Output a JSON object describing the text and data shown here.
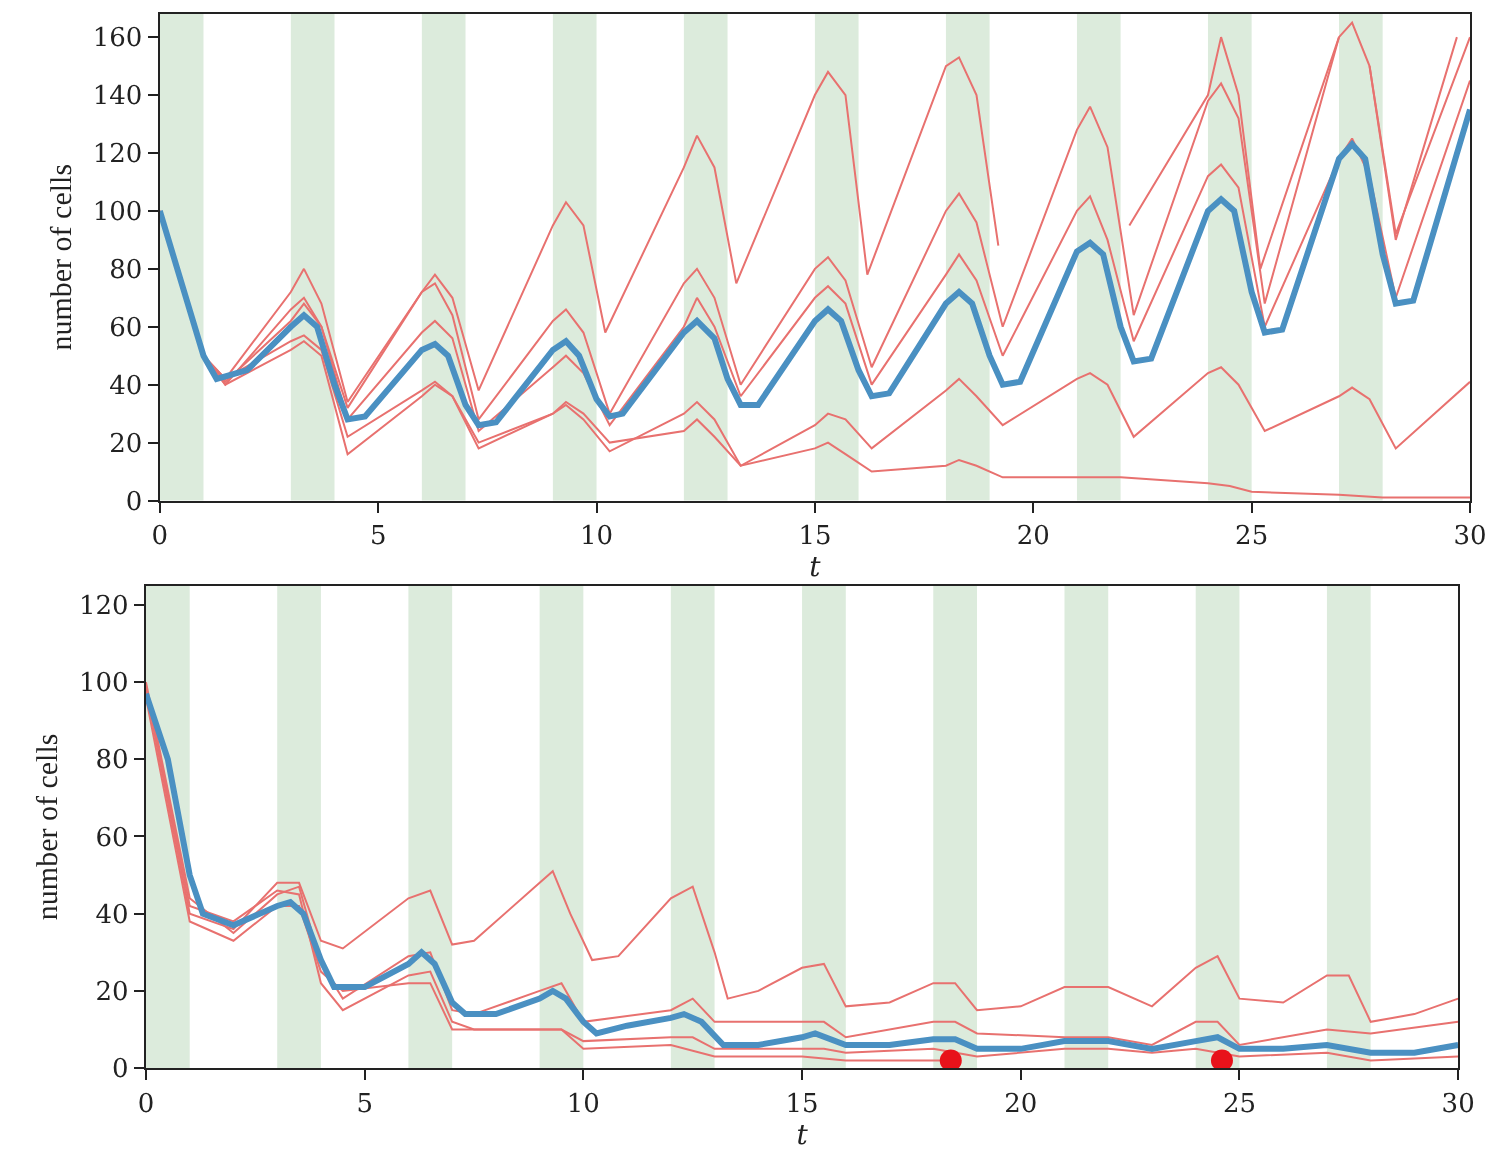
{
  "chart_data": [
    {
      "type": "line",
      "xlabel": "t",
      "ylabel": "number of cells",
      "xlim": [
        0,
        30
      ],
      "xticks": [
        0,
        5,
        10,
        15,
        20,
        25,
        30
      ],
      "ylim": [
        0,
        168
      ],
      "yticks": [
        0,
        20,
        40,
        60,
        80,
        100,
        120,
        140,
        160
      ],
      "grid": false,
      "marker": "none",
      "line_style": "solid",
      "bands": [
        {
          "axis": "x",
          "from": 0,
          "to": 1,
          "color": "#dcebdc"
        },
        {
          "axis": "x",
          "from": 3,
          "to": 4,
          "color": "#dcebdc"
        },
        {
          "axis": "x",
          "from": 6,
          "to": 7,
          "color": "#dcebdc"
        },
        {
          "axis": "x",
          "from": 9,
          "to": 10,
          "color": "#dcebdc"
        },
        {
          "axis": "x",
          "from": 12,
          "to": 13,
          "color": "#dcebdc"
        },
        {
          "axis": "x",
          "from": 15,
          "to": 16,
          "color": "#dcebdc"
        },
        {
          "axis": "x",
          "from": 18,
          "to": 19,
          "color": "#dcebdc"
        },
        {
          "axis": "x",
          "from": 21,
          "to": 22,
          "color": "#dcebdc"
        },
        {
          "axis": "x",
          "from": 24,
          "to": 25,
          "color": "#dcebdc"
        },
        {
          "axis": "x",
          "from": 27,
          "to": 28,
          "color": "#dcebdc"
        }
      ],
      "series": [
        {
          "color": "#e8716f",
          "x": [
            0,
            1,
            1.5,
            3,
            3.3,
            3.7,
            4.3,
            6,
            6.3,
            6.7,
            7.3,
            9,
            9.3,
            9.7,
            10.2,
            12,
            12.3,
            12.7,
            13.2,
            15,
            15.3,
            15.7,
            16.2,
            18,
            18.3,
            18.7,
            19.2,
            20.8,
            21.0,
            21.7,
            22.2,
            24,
            24.3,
            24.7,
            25.2,
            27,
            27.3,
            27.7,
            28.3,
            29.7
          ],
          "values": [
            100,
            50,
            42,
            72,
            80,
            68,
            34,
            72,
            78,
            70,
            38,
            95,
            103,
            95,
            58,
            115,
            126,
            115,
            75,
            140,
            148,
            140,
            78,
            150,
            153,
            140,
            88,
            null,
            null,
            null,
            95,
            140,
            160,
            140,
            80,
            160,
            null,
            150,
            90,
            160
          ]
        },
        {
          "color": "#e8716f",
          "x": [
            0,
            1,
            1.5,
            3,
            3.3,
            3.7,
            4.3,
            6,
            6.3,
            6.7,
            7.3,
            9,
            9.3,
            9.7,
            10.3,
            12,
            12.3,
            12.7,
            13.3,
            15,
            15.3,
            15.7,
            16.3,
            18,
            18.3,
            18.7,
            19.3,
            21,
            21.3,
            21.7,
            22.3,
            24,
            24.3,
            24.7,
            25.3,
            27,
            27.3,
            27.7,
            28.3,
            30
          ],
          "values": [
            100,
            50,
            40,
            66,
            70,
            60,
            32,
            72,
            75,
            64,
            28,
            62,
            66,
            58,
            30,
            75,
            80,
            70,
            40,
            80,
            84,
            76,
            46,
            100,
            106,
            96,
            60,
            128,
            136,
            122,
            64,
            138,
            144,
            132,
            68,
            160,
            165,
            150,
            92,
            160
          ]
        },
        {
          "color": "#e8716f",
          "x": [
            0,
            1,
            1.5,
            3,
            3.3,
            3.7,
            4.3,
            6,
            6.3,
            6.7,
            7.3,
            9,
            9.3,
            9.7,
            10.3,
            12,
            12.3,
            12.7,
            13.3,
            15,
            15.3,
            15.7,
            16.3,
            18,
            18.3,
            18.7,
            19.3,
            21,
            21.3,
            21.7,
            22.3,
            24,
            24.3,
            24.7,
            25.3,
            27,
            27.3,
            27.7,
            28.3,
            30
          ],
          "values": [
            100,
            50,
            41,
            62,
            68,
            60,
            28,
            58,
            62,
            56,
            24,
            46,
            50,
            44,
            26,
            60,
            70,
            60,
            36,
            70,
            74,
            68,
            40,
            78,
            85,
            76,
            50,
            100,
            105,
            90,
            55,
            112,
            116,
            108,
            60,
            118,
            125,
            112,
            70,
            145
          ]
        },
        {
          "color": "#e8716f",
          "x": [
            0,
            1,
            1.5,
            3,
            3.3,
            3.7,
            4.3,
            6,
            6.3,
            6.7,
            7.3,
            9,
            9.3,
            9.7,
            10.3,
            12,
            12.3,
            12.7,
            13.3,
            15,
            15.3,
            15.7,
            16.3,
            18,
            18.3,
            18.7,
            19.3,
            21,
            21.3,
            21.7,
            22.3,
            24,
            24.3,
            24.7,
            25.3,
            27,
            27.3,
            27.7,
            28.3,
            30
          ],
          "values": [
            100,
            50,
            40,
            52,
            55,
            50,
            16,
            36,
            40,
            36,
            18,
            30,
            33,
            28,
            17,
            30,
            34,
            28,
            12,
            26,
            30,
            28,
            18,
            38,
            42,
            36,
            26,
            42,
            44,
            40,
            22,
            44,
            46,
            40,
            24,
            36,
            39,
            35,
            18,
            41
          ]
        },
        {
          "color": "#e8716f",
          "x": [
            0,
            1,
            1.5,
            3,
            3.3,
            3.7,
            4.3,
            6,
            6.3,
            6.7,
            7.3,
            9,
            9.3,
            9.7,
            10.3,
            12,
            12.3,
            12.7,
            13.3,
            15,
            15.3,
            15.7,
            16.3,
            18,
            18.3,
            18.7,
            19.3,
            21,
            22,
            24,
            24.5,
            25,
            27,
            28,
            30
          ],
          "values": [
            100,
            50,
            42,
            55,
            57,
            52,
            22,
            38,
            41,
            36,
            20,
            30,
            34,
            30,
            20,
            24,
            28,
            22,
            12,
            18,
            20,
            16,
            10,
            12,
            14,
            12,
            8,
            8,
            8,
            6,
            5,
            3,
            2,
            1,
            1
          ]
        },
        {
          "color": "#4a90c2",
          "x": [
            0,
            0.5,
            1,
            1.3,
            2,
            3,
            3.3,
            3.6,
            4,
            4.3,
            4.7,
            6,
            6.3,
            6.6,
            7,
            7.3,
            7.7,
            9,
            9.3,
            9.6,
            10,
            10.3,
            10.6,
            12,
            12.3,
            12.7,
            13,
            13.3,
            13.7,
            15,
            15.3,
            15.6,
            16,
            16.3,
            16.7,
            18,
            18.3,
            18.6,
            19,
            19.3,
            19.7,
            21,
            21.3,
            21.6,
            22,
            22.3,
            22.7,
            24,
            24.3,
            24.6,
            25,
            25.3,
            25.7,
            27,
            27.3,
            27.6,
            28,
            28.3,
            28.7,
            30
          ],
          "values": [
            100,
            75,
            50,
            42,
            45,
            60,
            64,
            60,
            40,
            28,
            29,
            52,
            54,
            50,
            33,
            26,
            27,
            52,
            55,
            50,
            35,
            29,
            30,
            58,
            62,
            56,
            42,
            33,
            33,
            62,
            66,
            62,
            45,
            36,
            37,
            68,
            72,
            68,
            50,
            40,
            41,
            86,
            89,
            85,
            60,
            48,
            49,
            100,
            104,
            100,
            72,
            58,
            59,
            118,
            123,
            118,
            85,
            68,
            69,
            135
          ]
        }
      ]
    },
    {
      "type": "line",
      "xlabel": "t",
      "ylabel": "number of cells",
      "xlim": [
        0,
        30
      ],
      "xticks": [
        0,
        5,
        10,
        15,
        20,
        25,
        30
      ],
      "ylim": [
        0,
        125
      ],
      "yticks": [
        0,
        20,
        40,
        60,
        80,
        100,
        120
      ],
      "grid": false,
      "marker": "none",
      "line_style": "solid",
      "bands": [
        {
          "axis": "x",
          "from": 0,
          "to": 1,
          "color": "#dcebdc"
        },
        {
          "axis": "x",
          "from": 3,
          "to": 4,
          "color": "#dcebdc"
        },
        {
          "axis": "x",
          "from": 6,
          "to": 7,
          "color": "#dcebdc"
        },
        {
          "axis": "x",
          "from": 9,
          "to": 10,
          "color": "#dcebdc"
        },
        {
          "axis": "x",
          "from": 12,
          "to": 13,
          "color": "#dcebdc"
        },
        {
          "axis": "x",
          "from": 15,
          "to": 16,
          "color": "#dcebdc"
        },
        {
          "axis": "x",
          "from": 18,
          "to": 19,
          "color": "#dcebdc"
        },
        {
          "axis": "x",
          "from": 21,
          "to": 22,
          "color": "#dcebdc"
        },
        {
          "axis": "x",
          "from": 24,
          "to": 25,
          "color": "#dcebdc"
        },
        {
          "axis": "x",
          "from": 27,
          "to": 28,
          "color": "#dcebdc"
        }
      ],
      "series": [
        {
          "color": "#e8716f",
          "x": [
            0,
            1,
            2,
            3,
            3.5,
            4,
            4.5,
            6,
            6.5,
            7,
            7.5,
            9,
            9.3,
            9.7,
            10.2,
            10.8,
            12,
            12.5,
            13,
            13.3,
            14,
            15,
            15.5,
            16,
            17,
            18,
            18.5,
            19,
            20,
            21,
            22,
            23,
            24,
            24.5,
            25,
            26,
            27,
            27.5,
            28,
            29,
            30
          ],
          "values": [
            98,
            40,
            36,
            48,
            48,
            33,
            31,
            44,
            46,
            32,
            33,
            48,
            51,
            40,
            28,
            29,
            44,
            47,
            30,
            18,
            20,
            26,
            27,
            16,
            17,
            22,
            22,
            15,
            16,
            21,
            21,
            16,
            26,
            29,
            18,
            17,
            24,
            24,
            12,
            14,
            18
          ]
        },
        {
          "color": "#e8716f",
          "x": [
            0,
            1,
            2,
            3,
            3.5,
            4,
            4.5,
            6,
            6.5,
            7,
            7.5,
            9,
            9.5,
            10,
            12,
            12.5,
            13,
            15,
            15.5,
            16,
            18,
            19,
            21,
            22,
            23,
            24,
            25,
            27,
            28,
            30
          ],
          "values": [
            99,
            42,
            38,
            46,
            45,
            22,
            15,
            24,
            25,
            12,
            10,
            10,
            10,
            7,
            8,
            8,
            5,
            5,
            5,
            4,
            5,
            3,
            5,
            5,
            4,
            5,
            3,
            4,
            2,
            3
          ]
        },
        {
          "color": "#e8716f",
          "x": [
            0,
            1,
            2,
            3,
            3.5,
            4,
            4.5,
            6,
            6.5,
            7,
            7.5,
            9,
            9.5,
            10,
            12,
            12.5,
            13,
            15,
            15.5,
            16,
            18,
            18.5,
            19,
            21,
            22,
            23,
            24,
            24.5,
            25,
            27,
            28,
            30
          ],
          "values": [
            100,
            44,
            35,
            45,
            47,
            27,
            18,
            29,
            30,
            15,
            14,
            20,
            22,
            12,
            15,
            18,
            12,
            12,
            12,
            8,
            12,
            12,
            9,
            8,
            8,
            6,
            12,
            12,
            6,
            10,
            9,
            12
          ]
        },
        {
          "color": "#e8716f",
          "x": [
            0,
            1,
            2,
            3,
            3.5,
            4,
            4.5,
            6,
            6.5,
            7,
            9,
            9.5,
            10,
            12,
            13,
            15,
            16,
            18,
            18.4
          ],
          "values": [
            96,
            38,
            33,
            42,
            42,
            25,
            20,
            22,
            22,
            10,
            10,
            10,
            5,
            6,
            3,
            3,
            2,
            2,
            2
          ]
        },
        {
          "color": "#4a90c2",
          "x": [
            0,
            0.5,
            1,
            1.3,
            2,
            3,
            3.3,
            3.6,
            4,
            4.3,
            5,
            6,
            6.3,
            6.6,
            7,
            7.3,
            8,
            9,
            9.3,
            9.6,
            10,
            10.3,
            11,
            12,
            12.3,
            12.7,
            13.2,
            14,
            15,
            15.3,
            16,
            17,
            18,
            18.5,
            19,
            20,
            21,
            22,
            23,
            24,
            24.5,
            25,
            26,
            27,
            28,
            29,
            30
          ],
          "values": [
            97,
            80,
            50,
            40,
            37,
            42,
            43,
            40,
            28,
            21,
            21,
            27,
            30,
            27,
            17,
            14,
            14,
            18,
            20,
            18,
            12,
            9,
            11,
            13,
            14,
            12,
            6,
            6,
            8,
            9,
            6,
            6,
            7.5,
            7.5,
            5,
            5,
            7,
            7,
            5,
            7,
            8,
            5,
            5,
            6,
            4,
            4,
            6
          ]
        },
        {
          "type": "scatter",
          "marker": "circle",
          "color": "#e8121a",
          "x": [
            18.4,
            24.6
          ],
          "values": [
            2,
            2
          ]
        }
      ]
    }
  ]
}
